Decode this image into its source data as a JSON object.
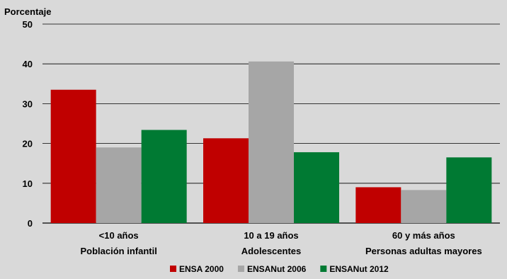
{
  "chart_data": {
    "type": "bar",
    "ylabel": "Porcentaje",
    "ylim": [
      0,
      50
    ],
    "yticks": [
      0,
      10,
      20,
      30,
      40,
      50
    ],
    "categories": [
      "<10 años",
      "10 a 19 años",
      "60 y más años"
    ],
    "category_sublabels": [
      "Población infantil",
      "Adolescentes",
      "Personas adultas mayores"
    ],
    "series": [
      {
        "name": "ENSA 2000",
        "color": "#c00000",
        "values": [
          33.5,
          21.3,
          9.0
        ]
      },
      {
        "name": "ENSANut 2006",
        "color": "#a6a6a6",
        "values": [
          19.0,
          40.6,
          8.3
        ]
      },
      {
        "name": "ENSANut 2012",
        "color": "#007a33",
        "values": [
          23.4,
          17.8,
          16.5
        ]
      }
    ],
    "grid": true,
    "legend_position": "bottom"
  }
}
